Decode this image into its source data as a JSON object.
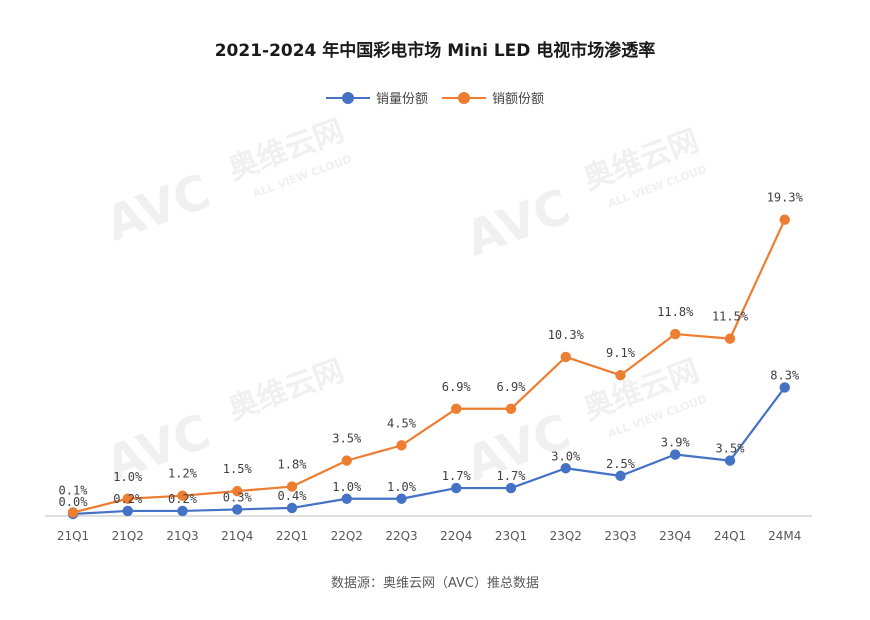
{
  "colors": {
    "sales_volume": "#4472C4",
    "sales_value": "#ED7D31",
    "axis": "#BFBFBF"
  },
  "watermark": {
    "brand": "AVC",
    "cn": "奥维云网",
    "en": "ALL VIEW CLOUD"
  },
  "source_text": "数据源：奥维云网（AVC）推总数据",
  "chart_data": {
    "type": "line",
    "title": "2021-2024 年中国彩电市场 Mini LED 电视市场渗透率",
    "categories": [
      "21Q1",
      "21Q2",
      "21Q3",
      "21Q4",
      "22Q1",
      "22Q2",
      "22Q3",
      "22Q4",
      "23Q1",
      "23Q2",
      "23Q3",
      "23Q4",
      "24Q1",
      "24M4"
    ],
    "series": [
      {
        "name": "销量份额",
        "color": "#4472C4",
        "values": [
          0.0,
          0.2,
          0.2,
          0.3,
          0.4,
          1.0,
          1.0,
          1.7,
          1.7,
          3.0,
          2.5,
          3.9,
          3.5,
          8.3
        ],
        "labels": [
          "0.0%",
          "0.2%",
          "0.2%",
          "0.3%",
          "0.4%",
          "1.0%",
          "1.0%",
          "1.7%",
          "1.7%",
          "3.0%",
          "2.5%",
          "3.9%",
          "3.5%",
          "8.3%"
        ]
      },
      {
        "name": "销额份额",
        "color": "#ED7D31",
        "values": [
          0.1,
          1.0,
          1.2,
          1.5,
          1.8,
          3.5,
          4.5,
          6.9,
          6.9,
          10.3,
          9.1,
          11.8,
          11.5,
          19.3
        ],
        "labels": [
          "0.1%",
          "1.0%",
          "1.2%",
          "1.5%",
          "1.8%",
          "3.5%",
          "4.5%",
          "6.9%",
          "6.9%",
          "10.3%",
          "9.1%",
          "11.8%",
          "11.5%",
          "19.3%"
        ]
      }
    ],
    "xlabel": "",
    "ylabel": "",
    "ylim": [
      0,
      24
    ],
    "grid": false,
    "legend": "top-center",
    "y_axis_visible": false
  }
}
